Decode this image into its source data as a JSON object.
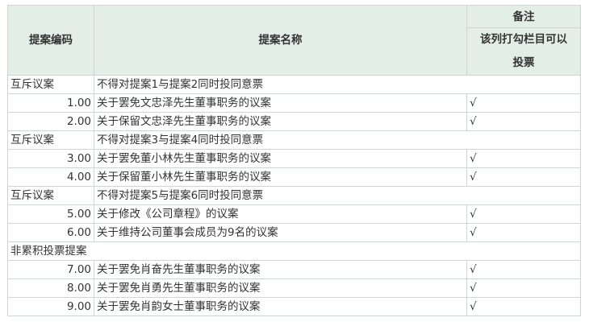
{
  "header": {
    "code": "提案编码",
    "name": "提案名称",
    "remark": "备注",
    "remark_sub_line1": "该列打勾栏目可以",
    "remark_sub_line2": "投票"
  },
  "rows": [
    {
      "type": "group",
      "code": "互斥议案",
      "name": "不得对提案1与提案2同时投同意票"
    },
    {
      "type": "item",
      "code": "1.00",
      "name": "关于罢免文忠泽先生董事职务的议案",
      "check": "√"
    },
    {
      "type": "item",
      "code": "2.00",
      "name": "关于保留文忠泽先生董事职务的议案",
      "check": "√"
    },
    {
      "type": "group",
      "code": "互斥议案",
      "name": "不得对提案3与提案4同时投同意票"
    },
    {
      "type": "item",
      "code": "3.00",
      "name": "关于罢免董小林先生董事职务的议案",
      "check": "√"
    },
    {
      "type": "item",
      "code": "4.00",
      "name": "关于保留董小林先生董事职务的议案",
      "check": "√"
    },
    {
      "type": "group",
      "code": "互斥议案",
      "name": "不得对提案5与提案6同时投同意票"
    },
    {
      "type": "item",
      "code": "5.00",
      "name": "关于修改《公司章程》的议案",
      "check": "√"
    },
    {
      "type": "item",
      "code": "6.00",
      "name": "关于维持公司董事会成员为9名的议案",
      "check": "√"
    },
    {
      "type": "section",
      "code": "非累积投票提案"
    },
    {
      "type": "item",
      "code": "7.00",
      "name": "关于罢免肖奋先生董事职务的议案",
      "check": "√"
    },
    {
      "type": "item",
      "code": "8.00",
      "name": "关于罢免肖勇先生董事职务的议案",
      "check": "√"
    },
    {
      "type": "item",
      "code": "9.00",
      "name": "关于罢免肖韵女士董事职务的议案",
      "check": "√"
    }
  ]
}
